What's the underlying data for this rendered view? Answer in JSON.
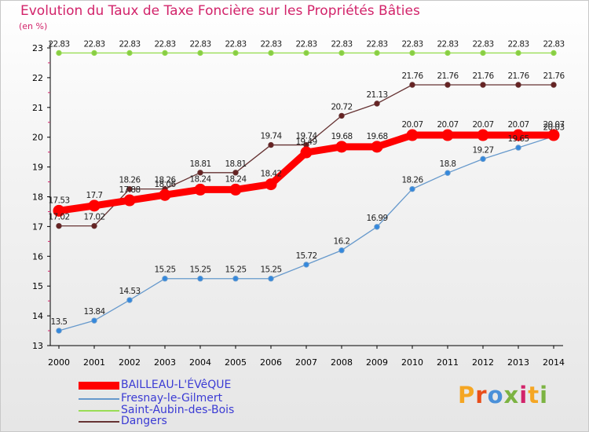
{
  "header": {
    "title": "Evolution du Taux de Taxe Foncière sur les Propriétés Bâties",
    "unit": "(en %)"
  },
  "colors": {
    "title": "#d2236a",
    "axis": "#000000",
    "series": [
      "#ff0000",
      "#6699cc",
      "#99dd55",
      "#663333"
    ],
    "marker_fill": [
      "#ff0000",
      "#3388dd",
      "#88cc44",
      "#662222"
    ]
  },
  "logo_text": "Proxiti",
  "chart_data": {
    "type": "line",
    "title": "Evolution du Taux de Taxe Foncière sur les Propriétés Bâties",
    "ylabel": "(en %)",
    "xlabel": "",
    "x": [
      "2000",
      "2001",
      "2002",
      "2003",
      "2004",
      "2005",
      "2006",
      "2007",
      "2008",
      "2009",
      "2010",
      "2011",
      "2012",
      "2013",
      "2014"
    ],
    "y_ticks": [
      "13",
      "14",
      "15",
      "16",
      "17",
      "18",
      "19",
      "20",
      "21",
      "22",
      "23"
    ],
    "ylim": [
      13,
      23
    ],
    "grid": false,
    "legend_position": "bottom-left",
    "series": [
      {
        "name": "BAILLEAU-L'ÉVêQUE",
        "values": [
          17.53,
          17.7,
          17.88,
          18.06,
          18.24,
          18.24,
          18.42,
          19.49,
          19.68,
          19.68,
          20.07,
          20.07,
          20.07,
          20.07,
          20.07
        ],
        "labels": [
          "17.53",
          "17.7",
          "17.88",
          "18.06",
          "18.24",
          "18.24",
          "18.42",
          "19.49",
          "19.68",
          "19.68",
          "20.07",
          "20.07",
          "20.07",
          "20.07",
          "20.07"
        ]
      },
      {
        "name": "Fresnay-le-Gilmert",
        "values": [
          13.5,
          13.84,
          14.53,
          15.25,
          15.25,
          15.25,
          15.25,
          15.72,
          16.2,
          16.99,
          18.26,
          18.8,
          19.27,
          19.65,
          20.03
        ],
        "labels": [
          "13.5",
          "13.84",
          "14.53",
          "15.25",
          "15.25",
          "15.25",
          "15.25",
          "15.72",
          "16.2",
          "16.99",
          "18.26",
          "18.8",
          "19.27",
          "19.65",
          "20.03"
        ]
      },
      {
        "name": "Saint-Aubin-des-Bois",
        "values": [
          22.83,
          22.83,
          22.83,
          22.83,
          22.83,
          22.83,
          22.83,
          22.83,
          22.83,
          22.83,
          22.83,
          22.83,
          22.83,
          22.83,
          22.83
        ],
        "labels": [
          "22.83",
          "22.83",
          "22.83",
          "22.83",
          "22.83",
          "22.83",
          "22.83",
          "22.83",
          "22.83",
          "22.83",
          "22.83",
          "22.83",
          "22.83",
          "22.83",
          "22.83"
        ]
      },
      {
        "name": "Dangers",
        "values": [
          17.02,
          17.02,
          18.26,
          18.26,
          18.81,
          18.81,
          19.74,
          19.74,
          20.72,
          21.13,
          21.76,
          21.76,
          21.76,
          21.76,
          21.76
        ],
        "labels": [
          "17.02",
          "17.02",
          "18.26",
          "18.26",
          "18.81",
          "18.81",
          "19.74",
          "19.74",
          "20.72",
          "21.13",
          "21.76",
          "21.76",
          "21.76",
          "21.76",
          "21.76"
        ]
      }
    ]
  }
}
